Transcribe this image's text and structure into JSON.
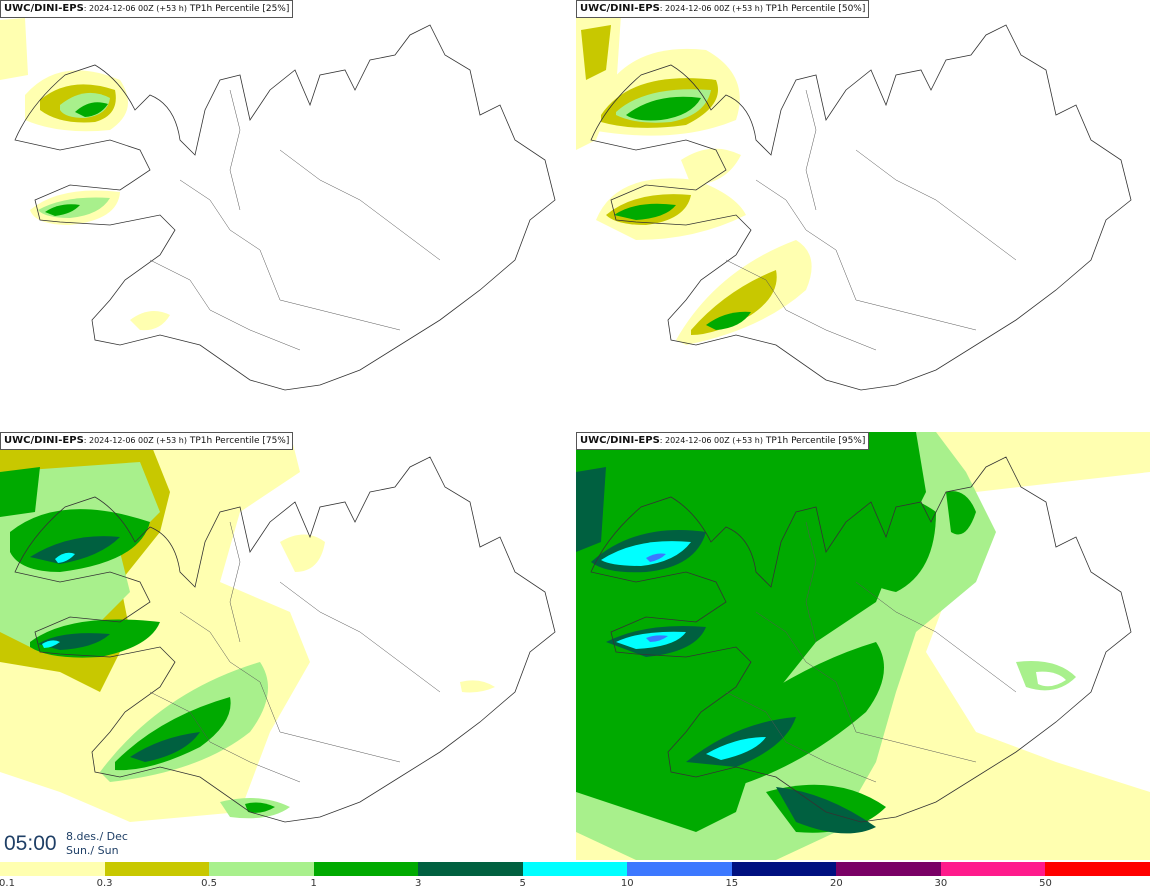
{
  "panels": [
    {
      "id": "p25",
      "model": "UWC/DINI-EPS",
      "run": ": 2024-12-06 00Z (+53 h)",
      "product": "TP1h Percentile [25%]",
      "level": 1
    },
    {
      "id": "p50",
      "model": "UWC/DINI-EPS",
      "run": ": 2024-12-06 00Z (+53 h)",
      "product": "TP1h Percentile [50%]",
      "level": 2
    },
    {
      "id": "p75",
      "model": "UWC/DINI-EPS",
      "run": ": 2024-12-06 00Z (+53 h)",
      "product": "TP1h Percentile [75%]",
      "level": 3
    },
    {
      "id": "p95",
      "model": "UWC/DINI-EPS",
      "run": ": 2024-12-06 00Z (+53 h)",
      "product": "TP1h Percentile [95%]",
      "level": 4
    }
  ],
  "valid_time": {
    "clock": "05:00",
    "date_line1": "8.des./ Dec",
    "date_line2": "Sun./ Sun"
  },
  "legend": {
    "labels": [
      "0.1",
      "0.3",
      "0.5",
      "1",
      "3",
      "5",
      "10",
      "15",
      "20",
      "30",
      "50"
    ],
    "colors": [
      "#ffffb0",
      "#c8c800",
      "#a8f08c",
      "#00aa00",
      "#006040",
      "#00ffff",
      "#3c78ff",
      "#001080",
      "#7a0066",
      "#ff1a8c",
      "#ff0000"
    ]
  },
  "precip_colors": {
    "light": "#ffffb0",
    "mid": "#c8c800",
    "lgreen": "#a8f08c",
    "green": "#00aa00",
    "dgreen": "#006040",
    "cyan": "#00ffff",
    "blue": "#3c78ff"
  }
}
